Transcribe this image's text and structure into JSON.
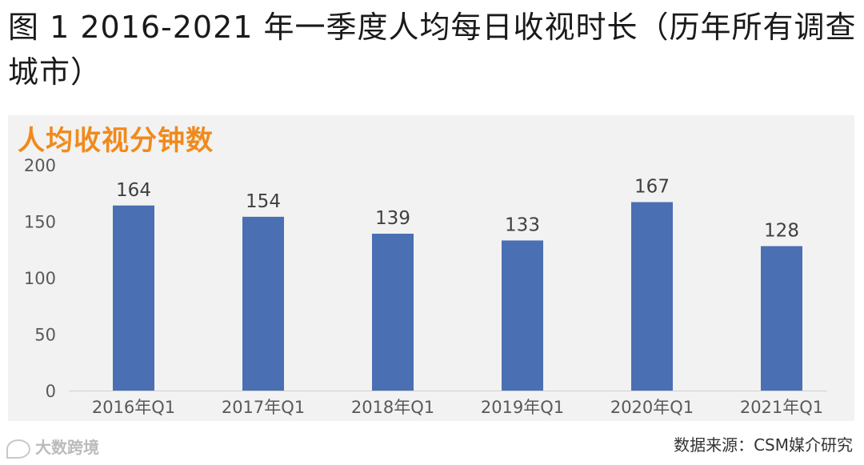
{
  "header": {
    "title": "图 1 2016-2021 年一季度人均每日收视时长（历年所有调查城市）"
  },
  "chart_data": {
    "type": "bar",
    "title": "人均收视分钟数",
    "categories": [
      "2016年Q1",
      "2017年Q1",
      "2018年Q1",
      "2019年Q1",
      "2020年Q1",
      "2021年Q1"
    ],
    "values": [
      164,
      154,
      139,
      133,
      167,
      128
    ],
    "data_labels": [
      "164",
      "154",
      "139",
      "133",
      "167",
      "128"
    ],
    "y_ticks": [
      "0",
      "50",
      "100",
      "150",
      "200"
    ],
    "ylim": [
      0,
      200
    ],
    "grid": false,
    "legend": "none",
    "bar_color": "#4a6fb3"
  },
  "footer": {
    "source": "数据来源：CSM媒介研究",
    "watermark": "大数跨境"
  }
}
